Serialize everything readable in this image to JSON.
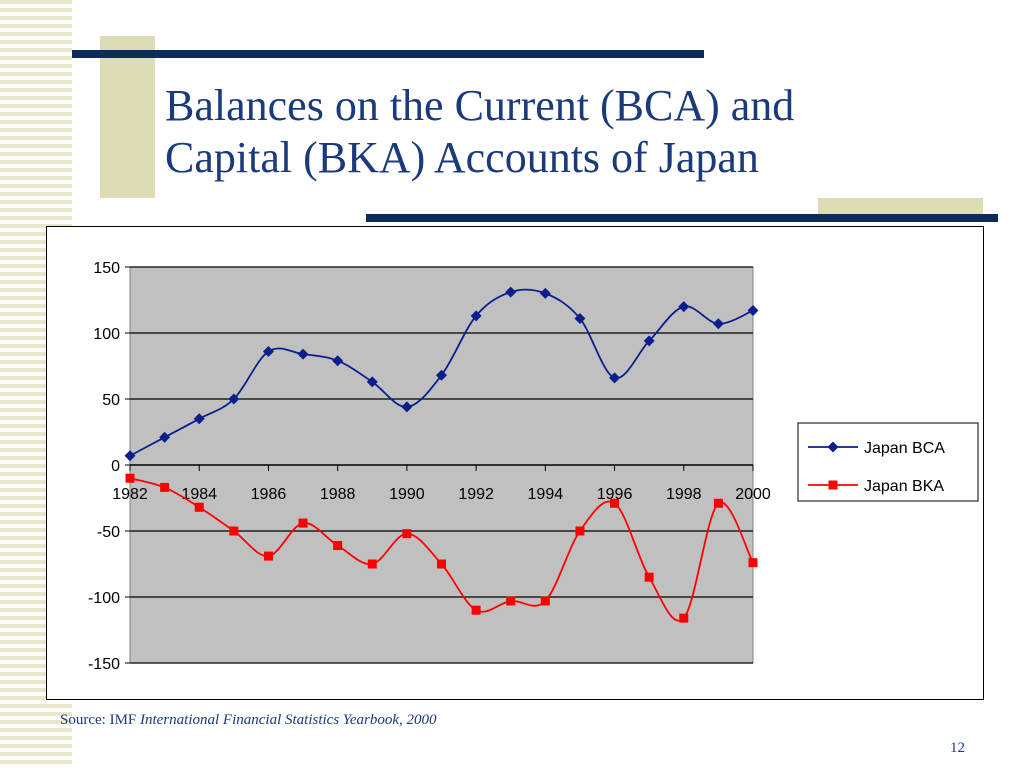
{
  "slide": {
    "title_line1": "Balances on the Current (BCA) and",
    "title_line2": "Capital (BKA) Accounts of Japan",
    "source_prefix": "Source: IMF ",
    "source_italic": "International Financial Statistics Yearbook, 2000",
    "page_number": "12"
  },
  "colors": {
    "title": "#1a3a7c",
    "rule": "#0e2c5a",
    "accent": "#dcdcb6",
    "plot_bg": "#c0c0c0",
    "bca": "#0a1f8c",
    "bka": "#ff0000"
  },
  "chart_data": {
    "type": "line",
    "title": "",
    "xlabel": "",
    "ylabel": "",
    "x": [
      1982,
      1983,
      1984,
      1985,
      1986,
      1987,
      1988,
      1989,
      1990,
      1991,
      1992,
      1993,
      1994,
      1995,
      1996,
      1997,
      1998,
      1999,
      2000
    ],
    "x_tick_labels": [
      "1982",
      "1984",
      "1986",
      "1988",
      "1990",
      "1992",
      "1994",
      "1996",
      "1998",
      "2000"
    ],
    "y_tick_labels": [
      "150",
      "100",
      "50",
      "0",
      "-50",
      "-100",
      "-150"
    ],
    "ylim": [
      -150,
      150
    ],
    "grid": true,
    "smooth": true,
    "legend_position": "right",
    "series": [
      {
        "name": "Japan BCA",
        "marker": "diamond",
        "color": "#0a1f8c",
        "values": [
          7,
          21,
          35,
          50,
          86,
          84,
          79,
          63,
          44,
          68,
          113,
          131,
          130,
          111,
          66,
          94,
          120,
          107,
          117
        ]
      },
      {
        "name": "Japan BKA",
        "marker": "square",
        "color": "#ff0000",
        "values": [
          -10,
          -17,
          -32,
          -50,
          -69,
          -44,
          -61,
          -75,
          -52,
          -75,
          -110,
          -103,
          -103,
          -50,
          -29,
          -85,
          -116,
          -29,
          -74
        ]
      }
    ]
  }
}
